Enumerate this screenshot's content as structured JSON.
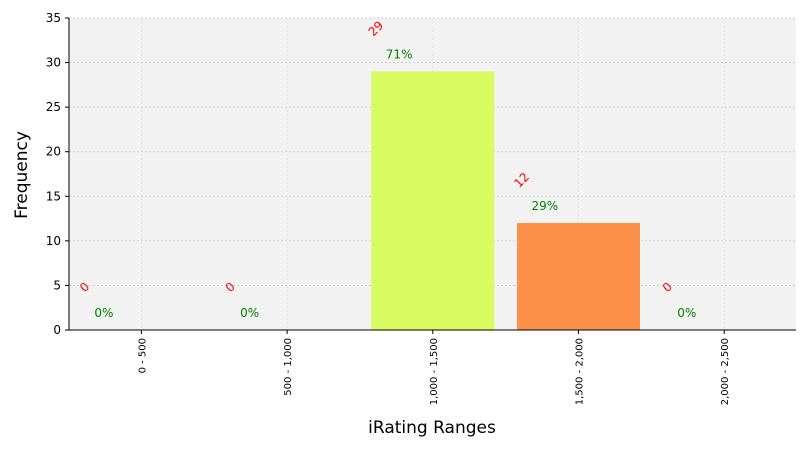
{
  "chart_data": {
    "type": "bar",
    "xlabel": "iRating Ranges",
    "ylabel": "Frequency",
    "categories": [
      "0 - 500",
      "500 - 1,000",
      "1,000 - 1,500",
      "1,500 - 2,000",
      "2,000 - 2,500"
    ],
    "values": [
      0,
      0,
      29,
      12,
      0
    ],
    "count_labels": [
      "0",
      "0",
      "29",
      "12",
      "0"
    ],
    "percent_labels": [
      "0%",
      "0%",
      "71%",
      "29%",
      "0%"
    ],
    "bar_colors": [
      "#d9fb60",
      "#d9fb60",
      "#d9fb60",
      "#fd9149",
      "#fd9149"
    ],
    "ylim": [
      0,
      35
    ],
    "yticks": [
      0,
      5,
      10,
      15,
      20,
      25,
      30,
      35
    ],
    "grid": true,
    "plot_background": "#f2f2f2",
    "count_label_color": "#ff0000",
    "percent_label_color": "#008000"
  }
}
